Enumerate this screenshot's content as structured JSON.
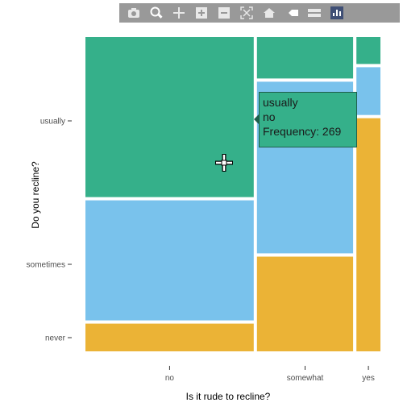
{
  "toolbar": {
    "icons": [
      "camera-icon",
      "zoom-icon",
      "pan-icon",
      "zoom-in-icon",
      "zoom-out-icon",
      "autoscale-icon",
      "reset-axes-icon",
      "spike-lines-icon",
      "compare-data-icon",
      "plotly-logo-icon"
    ]
  },
  "colors": {
    "usually": "#35b08a",
    "sometimes": "#79c2ec",
    "never": "#ebb336"
  },
  "tooltip": {
    "line1": "usually",
    "line2": "no",
    "line3": "Frequency: 269"
  },
  "chart_data": {
    "type": "mosaic",
    "xlabel": "Is it rude to recline?",
    "ylabel": "Do you recline?",
    "x_categories": [
      "no",
      "somewhat",
      "yes"
    ],
    "x_proportions": [
      0.63,
      0.36,
      0.09
    ],
    "y_categories": [
      "usually",
      "sometimes",
      "never"
    ],
    "y_tick_labels": [
      "usually",
      "sometimes",
      "never"
    ],
    "conditional_proportions": {
      "no": {
        "usually": 0.52,
        "sometimes": 0.39,
        "never": 0.09
      },
      "somewhat": {
        "usually": 0.14,
        "sometimes": 0.58,
        "never": 0.32
      },
      "yes": {
        "usually": 0.09,
        "sometimes": 0.16,
        "never": 0.78
      }
    },
    "hovered_cell": {
      "x": "no",
      "y": "usually",
      "frequency": 269
    }
  }
}
